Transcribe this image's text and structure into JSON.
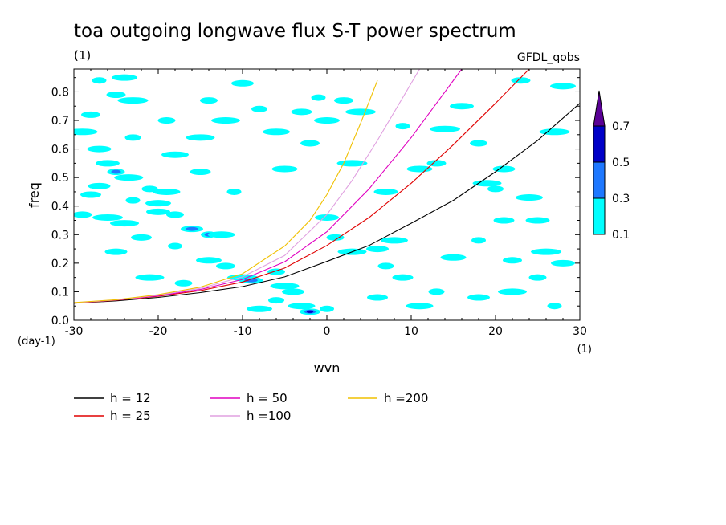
{
  "chart_data": {
    "type": "line",
    "title": "toa outgoing longwave flux S-T power spectrum",
    "subtitle": "(1)",
    "source_label": "GFDL_qobs",
    "xlabel": "wvn",
    "x_unit": "(1)",
    "ylabel": "freq",
    "y_unit": "(day-1)",
    "xlim": [
      -30,
      30
    ],
    "ylim": [
      0.0,
      0.88
    ],
    "x_ticks": [
      -30,
      -20,
      -10,
      0,
      10,
      20,
      30
    ],
    "y_ticks": [
      0.0,
      0.1,
      0.2,
      0.3,
      0.4,
      0.5,
      0.6,
      0.7,
      0.8
    ],
    "x_tick_labels": [
      "-30",
      "-20",
      "-10",
      "0",
      "10",
      "20",
      "30"
    ],
    "y_tick_labels": [
      "0.0",
      "0.1",
      "0.2",
      "0.3",
      "0.4",
      "0.5",
      "0.6",
      "0.7",
      "0.8"
    ],
    "grid": false,
    "legend_position": "below",
    "series": [
      {
        "name": "h = 12",
        "color": "#000000",
        "x": [
          -30,
          -25,
          -20,
          -15,
          -10,
          -5,
          0,
          5,
          10,
          15,
          20,
          25,
          30
        ],
        "y": [
          0.06,
          0.068,
          0.08,
          0.097,
          0.118,
          0.152,
          0.206,
          0.262,
          0.34,
          0.42,
          0.52,
          0.63,
          0.76
        ]
      },
      {
        "name": "h = 25",
        "color": "#e00000",
        "x": [
          -30,
          -25,
          -20,
          -15,
          -10,
          -5,
          0,
          5,
          10,
          15,
          20,
          24
        ],
        "y": [
          0.06,
          0.07,
          0.084,
          0.104,
          0.134,
          0.183,
          0.262,
          0.36,
          0.48,
          0.615,
          0.76,
          0.88
        ]
      },
      {
        "name": "h = 50",
        "color": "#e000c0",
        "x": [
          -30,
          -25,
          -20,
          -15,
          -10,
          -5,
          0,
          5,
          10,
          13,
          16
        ],
        "y": [
          0.061,
          0.071,
          0.086,
          0.108,
          0.143,
          0.205,
          0.31,
          0.46,
          0.64,
          0.76,
          0.88
        ]
      },
      {
        "name": "h =100",
        "color": "#e0a0e0",
        "x": [
          -30,
          -25,
          -20,
          -15,
          -10,
          -5,
          0,
          3,
          6,
          9,
          11
        ],
        "y": [
          0.061,
          0.071,
          0.088,
          0.112,
          0.152,
          0.227,
          0.37,
          0.49,
          0.63,
          0.78,
          0.88
        ]
      },
      {
        "name": "h =200",
        "color": "#f0c000",
        "x": [
          -30,
          -25,
          -20,
          -15,
          -10,
          -5,
          -2,
          0,
          2,
          4,
          6
        ],
        "y": [
          0.062,
          0.072,
          0.09,
          0.116,
          0.163,
          0.26,
          0.35,
          0.44,
          0.55,
          0.69,
          0.84
        ]
      }
    ],
    "colorbar": {
      "levels": [
        "0.1",
        "0.3",
        "0.5",
        "0.7"
      ],
      "colors": [
        "#00ffff",
        "#1e78ff",
        "#0000c8",
        "#5a0096"
      ]
    },
    "contour_blobs": [
      {
        "x": -27,
        "y": 0.84,
        "level": 0
      },
      {
        "x": -24,
        "y": 0.85,
        "level": 0
      },
      {
        "x": -25,
        "y": 0.79,
        "level": 0
      },
      {
        "x": -23,
        "y": 0.77,
        "level": 0
      },
      {
        "x": -26,
        "y": 0.55,
        "level": 0
      },
      {
        "x": -25,
        "y": 0.52,
        "level": 1
      },
      {
        "x": -23.5,
        "y": 0.5,
        "level": 0
      },
      {
        "x": -27,
        "y": 0.47,
        "level": 0
      },
      {
        "x": -21,
        "y": 0.46,
        "level": 0
      },
      {
        "x": -19,
        "y": 0.45,
        "level": 0
      },
      {
        "x": -28,
        "y": 0.44,
        "level": 0
      },
      {
        "x": -23,
        "y": 0.42,
        "level": 0
      },
      {
        "x": -20,
        "y": 0.41,
        "level": 0
      },
      {
        "x": -29,
        "y": 0.37,
        "level": 0
      },
      {
        "x": -26,
        "y": 0.36,
        "level": 0
      },
      {
        "x": -20,
        "y": 0.38,
        "level": 0
      },
      {
        "x": -18,
        "y": 0.37,
        "level": 0
      },
      {
        "x": -24,
        "y": 0.34,
        "level": 0
      },
      {
        "x": -16,
        "y": 0.32,
        "level": 1
      },
      {
        "x": -14,
        "y": 0.3,
        "level": 1
      },
      {
        "x": -12.5,
        "y": 0.3,
        "level": 0
      },
      {
        "x": -22,
        "y": 0.29,
        "level": 0
      },
      {
        "x": -18,
        "y": 0.26,
        "level": 0
      },
      {
        "x": -14,
        "y": 0.21,
        "level": 0
      },
      {
        "x": -12,
        "y": 0.19,
        "level": 0
      },
      {
        "x": -10,
        "y": 0.15,
        "level": 0
      },
      {
        "x": -9,
        "y": 0.14,
        "level": 1
      },
      {
        "x": -6,
        "y": 0.17,
        "level": 0
      },
      {
        "x": -5,
        "y": 0.12,
        "level": 0
      },
      {
        "x": -4,
        "y": 0.1,
        "level": 0
      },
      {
        "x": -6,
        "y": 0.07,
        "level": 0
      },
      {
        "x": -3,
        "y": 0.05,
        "level": 0
      },
      {
        "x": -2,
        "y": 0.03,
        "level": 2
      },
      {
        "x": 0,
        "y": 0.04,
        "level": 0
      },
      {
        "x": -8,
        "y": 0.04,
        "level": 0
      },
      {
        "x": -28,
        "y": 0.72,
        "level": 0
      },
      {
        "x": -29,
        "y": 0.66,
        "level": 0
      },
      {
        "x": -27,
        "y": 0.6,
        "level": 0
      },
      {
        "x": -14,
        "y": 0.77,
        "level": 0
      },
      {
        "x": -12,
        "y": 0.7,
        "level": 0
      },
      {
        "x": -10,
        "y": 0.83,
        "level": 0
      },
      {
        "x": -8,
        "y": 0.74,
        "level": 0
      },
      {
        "x": -6,
        "y": 0.66,
        "level": 0
      },
      {
        "x": -3,
        "y": 0.73,
        "level": 0
      },
      {
        "x": -1,
        "y": 0.78,
        "level": 0
      },
      {
        "x": 0,
        "y": 0.7,
        "level": 0
      },
      {
        "x": 2,
        "y": 0.77,
        "level": 0
      },
      {
        "x": 4,
        "y": 0.73,
        "level": 0
      },
      {
        "x": 0,
        "y": 0.36,
        "level": 0
      },
      {
        "x": 1,
        "y": 0.29,
        "level": 0
      },
      {
        "x": 3,
        "y": 0.24,
        "level": 0
      },
      {
        "x": 6,
        "y": 0.25,
        "level": 0
      },
      {
        "x": 7,
        "y": 0.19,
        "level": 0
      },
      {
        "x": 8,
        "y": 0.28,
        "level": 0
      },
      {
        "x": 9,
        "y": 0.15,
        "level": 0
      },
      {
        "x": 9,
        "y": 0.68,
        "level": 0
      },
      {
        "x": 11,
        "y": 0.53,
        "level": 0
      },
      {
        "x": 13,
        "y": 0.55,
        "level": 0
      },
      {
        "x": 14,
        "y": 0.67,
        "level": 0
      },
      {
        "x": 16,
        "y": 0.75,
        "level": 0
      },
      {
        "x": 18,
        "y": 0.62,
        "level": 0
      },
      {
        "x": 19,
        "y": 0.48,
        "level": 0
      },
      {
        "x": 21,
        "y": 0.53,
        "level": 0
      },
      {
        "x": 20,
        "y": 0.46,
        "level": 0
      },
      {
        "x": 24,
        "y": 0.43,
        "level": 0
      },
      {
        "x": 21,
        "y": 0.35,
        "level": 0
      },
      {
        "x": 18,
        "y": 0.28,
        "level": 0
      },
      {
        "x": 15,
        "y": 0.22,
        "level": 0
      },
      {
        "x": 22,
        "y": 0.21,
        "level": 0
      },
      {
        "x": 26,
        "y": 0.24,
        "level": 0
      },
      {
        "x": 28,
        "y": 0.2,
        "level": 0
      },
      {
        "x": 25,
        "y": 0.15,
        "level": 0
      },
      {
        "x": 22,
        "y": 0.1,
        "level": 0
      },
      {
        "x": 18,
        "y": 0.08,
        "level": 0
      },
      {
        "x": 13,
        "y": 0.1,
        "level": 0
      },
      {
        "x": 11,
        "y": 0.05,
        "level": 0
      },
      {
        "x": 6,
        "y": 0.08,
        "level": 0
      },
      {
        "x": 27,
        "y": 0.05,
        "level": 0
      },
      {
        "x": 28,
        "y": 0.82,
        "level": 0
      },
      {
        "x": 23,
        "y": 0.84,
        "level": 0
      },
      {
        "x": 27,
        "y": 0.66,
        "level": 0
      },
      {
        "x": 25,
        "y": 0.35,
        "level": 0
      },
      {
        "x": -17,
        "y": 0.13,
        "level": 0
      },
      {
        "x": -21,
        "y": 0.15,
        "level": 0
      },
      {
        "x": -25,
        "y": 0.24,
        "level": 0
      },
      {
        "x": -23,
        "y": 0.64,
        "level": 0
      },
      {
        "x": -18,
        "y": 0.58,
        "level": 0
      },
      {
        "x": -15,
        "y": 0.52,
        "level": 0
      },
      {
        "x": -11,
        "y": 0.45,
        "level": 0
      },
      {
        "x": -5,
        "y": 0.53,
        "level": 0
      },
      {
        "x": -2,
        "y": 0.62,
        "level": 0
      },
      {
        "x": 3,
        "y": 0.55,
        "level": 0
      },
      {
        "x": 7,
        "y": 0.45,
        "level": 0
      },
      {
        "x": -19,
        "y": 0.7,
        "level": 0
      },
      {
        "x": -15,
        "y": 0.64,
        "level": 0
      }
    ]
  }
}
